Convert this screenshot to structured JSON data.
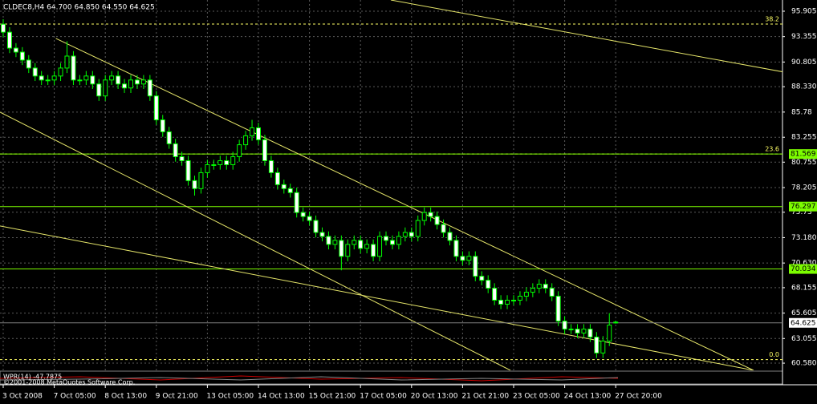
{
  "chart_data": {
    "type": "candlestick",
    "title": "CLDEC8,H4  64.700 64.850 64.550 64.625",
    "ohlc": [
      [
        94.6,
        95.1,
        93.3,
        93.8
      ],
      [
        93.8,
        94.3,
        91.7,
        92.2
      ],
      [
        92.2,
        92.7,
        91.3,
        91.8
      ],
      [
        91.8,
        92.3,
        90.5,
        91.0
      ],
      [
        91.0,
        91.5,
        89.7,
        90.2
      ],
      [
        90.2,
        90.7,
        88.9,
        89.4
      ],
      [
        89.4,
        89.9,
        88.5,
        89.0
      ],
      [
        89.0,
        89.5,
        88.5,
        89.0
      ],
      [
        89.0,
        89.9,
        88.5,
        89.4
      ],
      [
        89.4,
        90.7,
        88.9,
        90.2
      ],
      [
        90.2,
        92.9,
        89.7,
        91.4
      ],
      [
        91.4,
        91.9,
        88.5,
        89.0
      ],
      [
        89.0,
        89.5,
        88.5,
        89.0
      ],
      [
        89.0,
        89.9,
        88.5,
        89.4
      ],
      [
        89.4,
        89.9,
        88.1,
        88.6
      ],
      [
        88.6,
        89.1,
        86.9,
        87.4
      ],
      [
        87.4,
        89.5,
        86.9,
        89.0
      ],
      [
        89.0,
        89.9,
        88.5,
        89.4
      ],
      [
        89.4,
        89.9,
        88.1,
        88.6
      ],
      [
        88.6,
        89.1,
        87.7,
        88.2
      ],
      [
        88.2,
        89.5,
        87.7,
        89.0
      ],
      [
        89.0,
        89.5,
        88.1,
        88.6
      ],
      [
        88.6,
        89.5,
        88.1,
        89.0
      ],
      [
        89.0,
        89.5,
        86.9,
        87.4
      ],
      [
        87.4,
        87.9,
        84.5,
        85.0
      ],
      [
        85.0,
        85.5,
        83.3,
        83.8
      ],
      [
        83.8,
        84.3,
        82.1,
        82.6
      ],
      [
        82.6,
        83.1,
        80.8,
        81.3
      ],
      [
        81.3,
        81.8,
        80.4,
        80.9
      ],
      [
        80.9,
        81.4,
        78.4,
        78.9
      ],
      [
        78.9,
        79.4,
        77.4,
        78.1
      ],
      [
        78.1,
        80.2,
        77.6,
        79.7
      ],
      [
        79.7,
        81.0,
        79.2,
        80.5
      ],
      [
        80.5,
        81.0,
        80.0,
        80.5
      ],
      [
        80.5,
        81.4,
        80.0,
        80.9
      ],
      [
        80.9,
        81.4,
        80.0,
        80.5
      ],
      [
        80.5,
        81.8,
        80.0,
        81.3
      ],
      [
        81.3,
        83.0,
        80.8,
        82.5
      ],
      [
        82.5,
        83.9,
        82.0,
        83.4
      ],
      [
        83.4,
        85.0,
        82.9,
        84.2
      ],
      [
        84.2,
        84.7,
        82.5,
        83.0
      ],
      [
        83.0,
        83.5,
        80.4,
        80.9
      ],
      [
        80.9,
        81.4,
        79.2,
        79.7
      ],
      [
        79.7,
        80.2,
        78.0,
        78.5
      ],
      [
        78.5,
        79.0,
        77.6,
        78.1
      ],
      [
        78.1,
        78.6,
        77.2,
        77.7
      ],
      [
        77.7,
        78.2,
        75.2,
        75.7
      ],
      [
        75.7,
        76.2,
        74.8,
        75.3
      ],
      [
        75.3,
        75.8,
        74.4,
        74.9
      ],
      [
        74.9,
        75.4,
        73.2,
        73.7
      ],
      [
        73.7,
        74.2,
        72.8,
        73.3
      ],
      [
        73.3,
        73.8,
        72.0,
        72.5
      ],
      [
        72.5,
        73.4,
        72.0,
        72.9
      ],
      [
        72.9,
        73.4,
        69.9,
        71.3
      ],
      [
        71.3,
        73.0,
        70.8,
        72.5
      ],
      [
        72.5,
        73.4,
        72.0,
        72.9
      ],
      [
        72.9,
        73.4,
        71.6,
        72.1
      ],
      [
        72.1,
        73.0,
        71.6,
        72.5
      ],
      [
        72.5,
        73.0,
        70.8,
        71.3
      ],
      [
        71.3,
        73.8,
        70.8,
        73.3
      ],
      [
        73.3,
        73.8,
        72.4,
        72.9
      ],
      [
        72.9,
        73.4,
        72.0,
        72.5
      ],
      [
        72.5,
        73.8,
        72.0,
        73.3
      ],
      [
        73.3,
        74.2,
        72.8,
        73.7
      ],
      [
        73.7,
        74.2,
        72.8,
        73.3
      ],
      [
        73.3,
        75.4,
        72.8,
        74.9
      ],
      [
        74.9,
        76.2,
        74.4,
        75.7
      ],
      [
        75.7,
        76.2,
        74.8,
        75.3
      ],
      [
        75.3,
        75.8,
        74.0,
        74.5
      ],
      [
        74.5,
        75.0,
        73.2,
        73.7
      ],
      [
        73.7,
        74.2,
        72.4,
        72.9
      ],
      [
        72.9,
        73.4,
        70.8,
        71.3
      ],
      [
        71.3,
        71.8,
        70.4,
        70.9
      ],
      [
        70.9,
        71.8,
        70.4,
        71.3
      ],
      [
        71.3,
        71.8,
        68.8,
        69.3
      ],
      [
        69.3,
        69.8,
        68.4,
        68.9
      ],
      [
        68.9,
        69.4,
        67.6,
        68.1
      ],
      [
        68.1,
        68.6,
        66.4,
        66.9
      ],
      [
        66.9,
        67.4,
        66.0,
        66.5
      ],
      [
        66.5,
        67.4,
        66.0,
        66.9
      ],
      [
        66.9,
        67.4,
        66.4,
        66.9
      ],
      [
        66.9,
        67.8,
        66.4,
        67.3
      ],
      [
        67.3,
        68.2,
        66.8,
        67.7
      ],
      [
        67.7,
        68.6,
        67.2,
        68.1
      ],
      [
        68.1,
        69.0,
        67.6,
        68.5
      ],
      [
        68.5,
        69.0,
        67.6,
        68.1
      ],
      [
        68.1,
        68.6,
        66.8,
        67.3
      ],
      [
        67.3,
        67.8,
        64.3,
        64.8
      ],
      [
        64.8,
        65.3,
        63.5,
        64.0
      ],
      [
        64.0,
        64.5,
        63.5,
        64.0
      ],
      [
        64.0,
        64.5,
        63.1,
        63.6
      ],
      [
        63.6,
        64.5,
        63.1,
        64.0
      ],
      [
        64.0,
        64.5,
        62.7,
        63.2
      ],
      [
        63.2,
        63.7,
        61.1,
        61.6
      ],
      [
        61.6,
        63.3,
        61.1,
        62.8
      ],
      [
        62.8,
        65.6,
        62.3,
        64.4
      ],
      [
        64.7,
        64.85,
        64.55,
        64.625
      ]
    ],
    "candle_color": "#00ff00",
    "up_body_color": "#000000",
    "down_body_color": "#ffffff",
    "ylim": [
      59.86,
      97.03
    ],
    "yticks": [
      95.905,
      93.355,
      90.805,
      {
        "value": 88.33,
        "label": "88.330"
      },
      85.78,
      83.255,
      80.755,
      78.205,
      75.73,
      {
        "value": 73.18,
        "label": "73.180"
      },
      {
        "value": 70.63,
        "label": "70.630"
      },
      68.155,
      65.605,
      63.055,
      {
        "value": 60.58,
        "label": "60.580"
      }
    ],
    "xticks": [
      {
        "value": 0,
        "label": "3 Oct 2008"
      },
      {
        "value": 8,
        "label": "7 Oct 05:00"
      },
      {
        "value": 16,
        "label": "8 Oct 13:00"
      },
      {
        "value": 24,
        "label": "9 Oct 21:00"
      },
      {
        "value": 32,
        "label": "13 Oct 05:00"
      },
      {
        "value": 40,
        "label": "14 Oct 13:00"
      },
      {
        "value": 48,
        "label": "15 Oct 21:00"
      },
      {
        "value": 56,
        "label": "17 Oct 05:00"
      },
      {
        "value": 64,
        "label": "20 Oct 13:00"
      },
      {
        "value": 72,
        "label": "21 Oct 21:00"
      },
      {
        "value": 80,
        "label": "23 Oct 05:00"
      },
      {
        "value": 88,
        "label": "24 Oct 13:00"
      },
      {
        "value": 96,
        "label": "27 Oct 20:00"
      }
    ],
    "grid": true,
    "levels": [
      81.569,
      76.297,
      70.034
    ],
    "level_color": "#7cfc00",
    "fib_color": "#ffff66",
    "fib": [
      {
        "value": 94.62,
        "label": "38.2"
      },
      {
        "value": 81.569,
        "label": "23.6"
      },
      {
        "value": 60.94,
        "label": "0.0"
      }
    ],
    "trendline_color": "#e6e66a",
    "trendlines": [
      {
        "x": [
          60.75,
          125.75
        ],
        "y": [
          97.03,
          89.4
        ]
      },
      {
        "x": [
          8.25,
          117.6
        ],
        "y": [
          93.17,
          59.86
        ]
      },
      {
        "x": [
          -0.5,
          79.5
        ],
        "y": [
          85.77,
          59.86
        ]
      },
      {
        "x": [
          -0.5,
          117.6
        ],
        "y": [
          74.35,
          59.86
        ]
      }
    ],
    "indicator_label": "WPR(14) -47.7875",
    "copyright": "©2001-2008 MetaQuotes Software Corp."
  }
}
